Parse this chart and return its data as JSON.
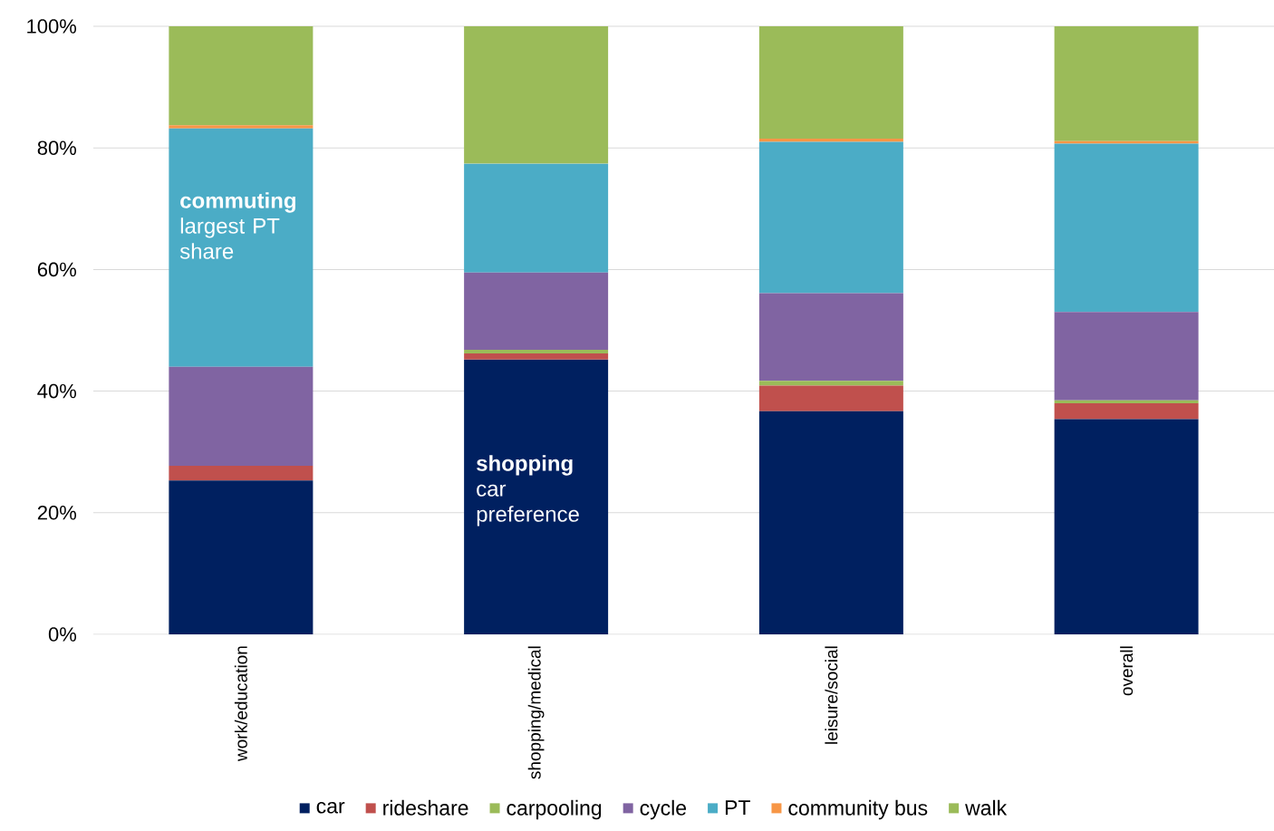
{
  "chart_data": {
    "type": "bar",
    "stacked": true,
    "categories": [
      "work/education",
      "shopping/medical",
      "leisure/social",
      "overall"
    ],
    "series": [
      {
        "name": "car",
        "color": "#002060",
        "values": [
          25.3,
          45.2,
          36.7,
          35.4
        ]
      },
      {
        "name": "rideshare",
        "color": "#C0504D",
        "values": [
          2.4,
          1.0,
          4.2,
          2.6
        ]
      },
      {
        "name": "carpooling",
        "color": "#9BBB59",
        "values": [
          0,
          0.6,
          0.8,
          0.5
        ]
      },
      {
        "name": "cycle",
        "color": "#8064A2",
        "values": [
          16.3,
          12.7,
          14.4,
          14.5
        ]
      },
      {
        "name": "PT",
        "color": "#4BACC6",
        "values": [
          39.2,
          17.9,
          24.9,
          27.7
        ]
      },
      {
        "name": "community bus",
        "color": "#F79646",
        "values": [
          0.5,
          0,
          0.5,
          0.4
        ]
      },
      {
        "name": "walk",
        "color": "#9BBB59",
        "values": [
          16.3,
          22.6,
          18.5,
          18.9
        ]
      }
    ],
    "ylim": [
      0,
      100
    ],
    "yticks": [
      {
        "value": 0,
        "label": "0%"
      },
      {
        "value": 20,
        "label": "20%"
      },
      {
        "value": 40,
        "label": "40%"
      },
      {
        "value": 60,
        "label": "60%"
      },
      {
        "value": 80,
        "label": "80%"
      },
      {
        "value": 100,
        "label": "100%"
      }
    ],
    "grid": "y",
    "legend": "bottom",
    "annotations": [
      "**commuting** largest PT share",
      "**shopping** car preference"
    ]
  }
}
